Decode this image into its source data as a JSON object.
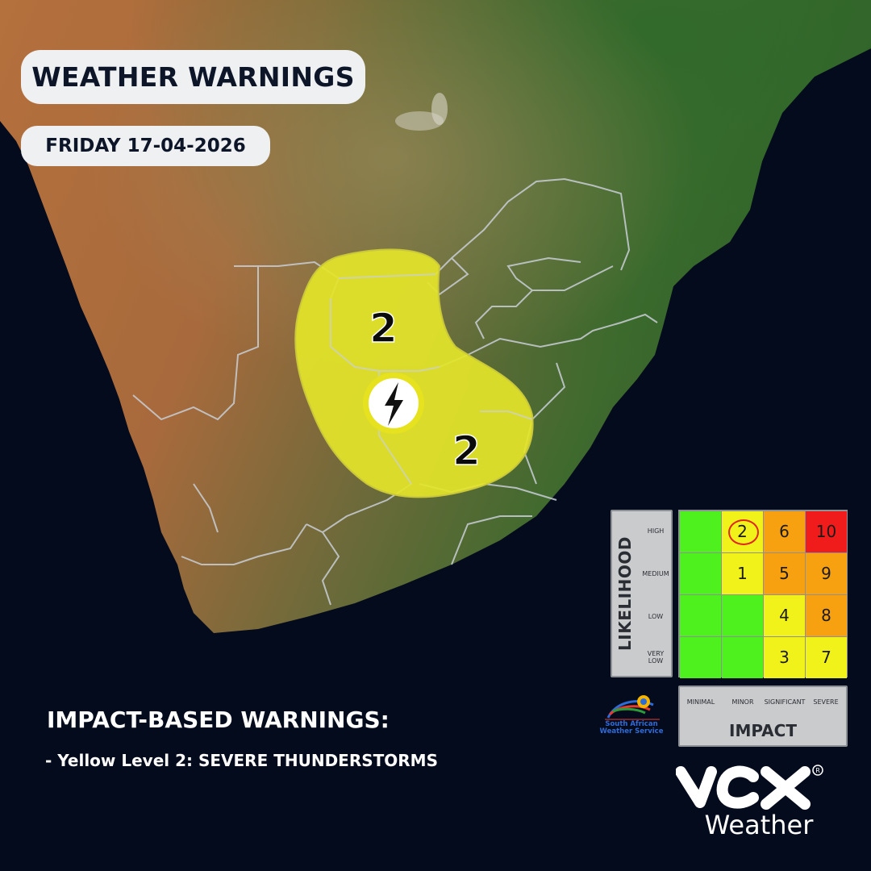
{
  "header": {
    "title": "WEATHER WARNINGS",
    "date": "FRIDAY 17-04-2026"
  },
  "warning_area": {
    "color": "#e3e42a",
    "icon": "lightning-icon",
    "levels": [
      "2",
      "2"
    ]
  },
  "impact_section": {
    "heading": "IMPACT-BASED WARNINGS:",
    "items": [
      "- Yellow Level 2: SEVERE THUNDERSTORMS"
    ]
  },
  "matrix": {
    "likelihood_title": "LIKELIHOOD",
    "impact_title": "IMPACT",
    "likelihood_levels": [
      "HIGH",
      "MEDIUM",
      "LOW",
      "VERY LOW"
    ],
    "impact_levels": [
      "MINIMAL",
      "MINOR",
      "SIGNIFICANT",
      "SEVERE"
    ],
    "rows": [
      [
        {
          "value": "",
          "color": "#4ef01e"
        },
        {
          "value": "2",
          "color": "#f2f21b",
          "circled": true
        },
        {
          "value": "6",
          "color": "#f7a010"
        },
        {
          "value": "10",
          "color": "#f01b1b"
        }
      ],
      [
        {
          "value": "",
          "color": "#4ef01e"
        },
        {
          "value": "1",
          "color": "#f2f21b"
        },
        {
          "value": "5",
          "color": "#f7a010"
        },
        {
          "value": "9",
          "color": "#f7a010"
        }
      ],
      [
        {
          "value": "",
          "color": "#4ef01e"
        },
        {
          "value": "",
          "color": "#4ef01e"
        },
        {
          "value": "4",
          "color": "#f2f21b"
        },
        {
          "value": "8",
          "color": "#f7a010"
        }
      ],
      [
        {
          "value": "",
          "color": "#4ef01e"
        },
        {
          "value": "",
          "color": "#4ef01e"
        },
        {
          "value": "3",
          "color": "#f2f21b"
        },
        {
          "value": "7",
          "color": "#f2f21b"
        }
      ]
    ]
  },
  "logos": {
    "saws_lines": [
      "South African",
      "Weather Service"
    ],
    "vox_brand": "vox",
    "vox_product": "Weather"
  },
  "colors": {
    "ocean": "#040b1c",
    "land_desert": "#b06a38",
    "land_green": "#3f6a2e",
    "border": "#c9ced6"
  }
}
